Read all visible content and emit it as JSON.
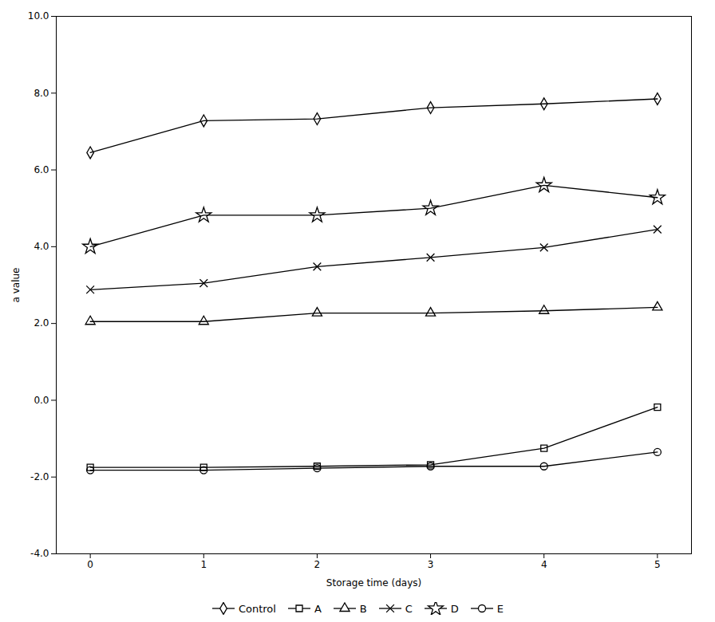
{
  "chart_data": {
    "type": "line",
    "xlabel": "Storage time (days)",
    "ylabel": "a value",
    "x": [
      0,
      1,
      2,
      3,
      4,
      5
    ],
    "xlim": [
      -0.3,
      5.3
    ],
    "xticks": [
      0,
      1,
      2,
      3,
      4,
      5
    ],
    "ylim": [
      -4.0,
      10.0
    ],
    "yticks": [
      {
        "value": -4.0,
        "label": "-4.0"
      },
      {
        "value": -2.0,
        "label": "-2.0"
      },
      {
        "value": 0.0,
        "label": "0.0"
      },
      {
        "value": 2.0,
        "label": "2.0"
      },
      {
        "value": 4.0,
        "label": "4.0"
      },
      {
        "value": 6.0,
        "label": "6.0"
      },
      {
        "value": 8.0,
        "label": "8.0"
      },
      {
        "value": 10.0,
        "label": "10.0"
      }
    ],
    "grid": false,
    "legend": "bottom",
    "series": [
      {
        "name": "Control",
        "color": "#000000",
        "marker": "diamond",
        "values": [
          6.45,
          7.28,
          7.33,
          7.62,
          7.72,
          7.85
        ]
      },
      {
        "name": "A",
        "color": "#000000",
        "marker": "square",
        "values": [
          -1.75,
          -1.75,
          -1.72,
          -1.68,
          -1.25,
          -0.18
        ]
      },
      {
        "name": "B",
        "color": "#000000",
        "marker": "triangle",
        "values": [
          2.05,
          2.05,
          2.27,
          2.27,
          2.33,
          2.42
        ]
      },
      {
        "name": "C",
        "color": "#000000",
        "marker": "x",
        "values": [
          2.88,
          3.05,
          3.48,
          3.72,
          3.98,
          4.45
        ]
      },
      {
        "name": "D",
        "color": "#000000",
        "marker": "star",
        "values": [
          4.0,
          4.82,
          4.82,
          5.0,
          5.6,
          5.28
        ]
      },
      {
        "name": "E",
        "color": "#000000",
        "marker": "circle",
        "values": [
          -1.82,
          -1.82,
          -1.77,
          -1.72,
          -1.72,
          -1.35
        ]
      }
    ]
  }
}
